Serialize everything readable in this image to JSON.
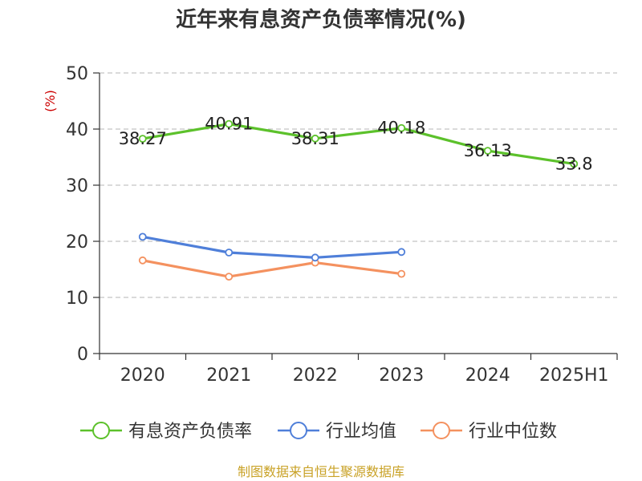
{
  "chart_data": {
    "type": "line",
    "title": "近年来有息资产负债率情况(%)",
    "ylabel": "(%)",
    "categories": [
      "2020",
      "2021",
      "2022",
      "2023",
      "2024",
      "2025H1"
    ],
    "ylim": [
      0,
      50
    ],
    "yticks": [
      0,
      10,
      20,
      30,
      40,
      50
    ],
    "grid": true,
    "legend_position": "bottom",
    "series": [
      {
        "name": "有息资产负债率",
        "color": "#5cc12b",
        "values": [
          38.27,
          40.91,
          38.31,
          40.18,
          36.13,
          33.8
        ],
        "labels": [
          "38.27",
          "40.91",
          "38.31",
          "40.18",
          "36.13",
          "33.8"
        ]
      },
      {
        "name": "行业均值",
        "color": "#4f7fd9",
        "values": [
          20.8,
          18.0,
          17.1,
          18.1,
          null,
          null
        ]
      },
      {
        "name": "行业中位数",
        "color": "#f4915f",
        "values": [
          16.6,
          13.7,
          16.2,
          14.2,
          null,
          null
        ]
      }
    ],
    "source": "制图数据来自恒生聚源数据库"
  }
}
